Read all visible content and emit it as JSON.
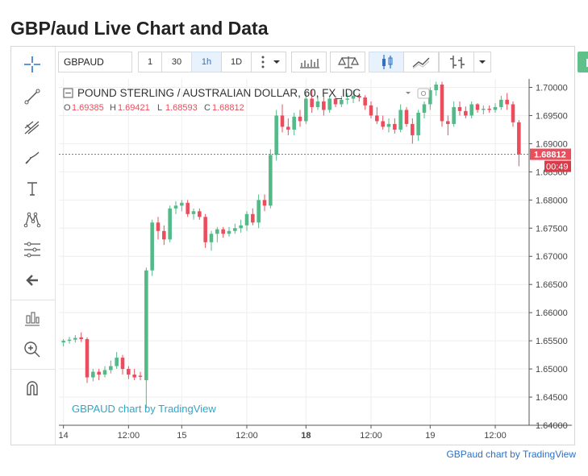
{
  "page": {
    "title": "GBP/aud Live Chart and Data"
  },
  "toolbar": {
    "symbol": "GBPAUD",
    "intervals": [
      "1",
      "30",
      "1h",
      "1D"
    ],
    "active_interval": "1h",
    "icons": [
      "more-dots-icon",
      "chevron-down-icon",
      "bar-style-icon",
      "compare-icon",
      "candles-icon",
      "line-style-icon",
      "indicators-icon",
      "chevron-down-icon",
      "camera-icon"
    ]
  },
  "sidebar": {
    "tools": [
      "crosshair-icon",
      "trend-line-icon",
      "pitchfork-icon",
      "brush-icon",
      "text-icon",
      "pattern-icon",
      "fib-icon",
      "back-arrow-icon",
      "bars-icon",
      "zoom-in-icon",
      "magnet-icon"
    ]
  },
  "legend": {
    "title": "POUND STERLING / AUSTRALIAN DOLLAR, 60, FX_IDC",
    "o_label": "O",
    "o_value": "1.69385",
    "h_label": "H",
    "h_value": "1.69421",
    "l_label": "L",
    "l_value": "1.68593",
    "c_label": "C",
    "c_value": "1.68812"
  },
  "watermark": "GBPAUD chart by TradingView",
  "credit": "GBPaud chart by TradingView",
  "last_price": {
    "value": "1.68812",
    "countdown": "00:49"
  },
  "colors": {
    "up": "#53b987",
    "down": "#eb4d5c",
    "accent": "#2a72c8",
    "camera": "#60c08a"
  },
  "chart_data": {
    "type": "candlestick",
    "y_ticks": [
      "1.70000",
      "1.69500",
      "1.69000",
      "1.68500",
      "1.68000",
      "1.67500",
      "1.67000",
      "1.66500",
      "1.66000",
      "1.65500",
      "1.65000",
      "1.64500",
      "1.64000"
    ],
    "x_ticks": [
      "14",
      "12:00",
      "15",
      "12:00",
      "18",
      "12:00",
      "19",
      "12:00"
    ],
    "ylim": [
      1.64,
      1.7015
    ],
    "candles": [
      [
        1.6547,
        1.6553,
        1.654,
        1.655
      ],
      [
        1.655,
        1.6557,
        1.6545,
        1.6552
      ],
      [
        1.6552,
        1.656,
        1.6547,
        1.6555
      ],
      [
        1.6556,
        1.6565,
        1.6548,
        1.6553
      ],
      [
        1.6553,
        1.6556,
        1.6475,
        1.6485
      ],
      [
        1.6485,
        1.65,
        1.6478,
        1.6495
      ],
      [
        1.6495,
        1.65,
        1.648,
        1.649
      ],
      [
        1.649,
        1.6505,
        1.6485,
        1.6498
      ],
      [
        1.6498,
        1.6515,
        1.6492,
        1.6505
      ],
      [
        1.6505,
        1.653,
        1.65,
        1.652
      ],
      [
        1.652,
        1.6525,
        1.649,
        1.65
      ],
      [
        1.65,
        1.6505,
        1.6482,
        1.649
      ],
      [
        1.649,
        1.65,
        1.648,
        1.6485
      ],
      [
        1.6488,
        1.6495,
        1.648,
        1.6486
      ],
      [
        1.648,
        1.668,
        1.643,
        1.6675
      ],
      [
        1.6675,
        1.6765,
        1.6665,
        1.676
      ],
      [
        1.676,
        1.677,
        1.673,
        1.6745
      ],
      [
        1.6745,
        1.6755,
        1.672,
        1.673
      ],
      [
        1.673,
        1.679,
        1.6725,
        1.6785
      ],
      [
        1.6785,
        1.6798,
        1.6775,
        1.679
      ],
      [
        1.679,
        1.68,
        1.678,
        1.6795
      ],
      [
        1.6795,
        1.68,
        1.677,
        1.6775
      ],
      [
        1.6775,
        1.6785,
        1.6765,
        1.678
      ],
      [
        1.678,
        1.6785,
        1.6765,
        1.677
      ],
      [
        1.677,
        1.6775,
        1.6715,
        1.6725
      ],
      [
        1.6725,
        1.6745,
        1.671,
        1.674
      ],
      [
        1.674,
        1.6752,
        1.6725,
        1.6748
      ],
      [
        1.6748,
        1.6752,
        1.6733,
        1.674
      ],
      [
        1.674,
        1.6752,
        1.6735,
        1.6745
      ],
      [
        1.6745,
        1.6758,
        1.674,
        1.675
      ],
      [
        1.675,
        1.6765,
        1.6742,
        1.6755
      ],
      [
        1.6755,
        1.678,
        1.6745,
        1.6775
      ],
      [
        1.6775,
        1.6785,
        1.6755,
        1.676
      ],
      [
        1.676,
        1.681,
        1.675,
        1.68
      ],
      [
        1.68,
        1.681,
        1.678,
        1.679
      ],
      [
        1.679,
        1.689,
        1.6785,
        1.688
      ],
      [
        1.688,
        1.696,
        1.687,
        1.695
      ],
      [
        1.695,
        1.697,
        1.692,
        1.693
      ],
      [
        1.693,
        1.6945,
        1.6915,
        1.6925
      ],
      [
        1.6925,
        1.6955,
        1.6915,
        1.6948
      ],
      [
        1.6948,
        1.696,
        1.693,
        1.694
      ],
      [
        1.694,
        1.699,
        1.6935,
        1.698
      ],
      [
        1.698,
        1.6995,
        1.6955,
        1.6965
      ],
      [
        1.6965,
        1.6985,
        1.696,
        1.6975
      ],
      [
        1.6975,
        1.6985,
        1.695,
        1.696
      ],
      [
        1.696,
        1.6985,
        1.6955,
        1.698
      ],
      [
        1.698,
        1.6985,
        1.6965,
        1.697
      ],
      [
        1.697,
        1.6985,
        1.6965,
        1.6978
      ],
      [
        1.6978,
        1.699,
        1.697,
        1.698
      ],
      [
        1.698,
        1.6995,
        1.6972,
        1.6985
      ],
      [
        1.6985,
        1.699,
        1.6975,
        1.6982
      ],
      [
        1.6982,
        1.6986,
        1.696,
        1.6968
      ],
      [
        1.6968,
        1.6975,
        1.6945,
        1.695
      ],
      [
        1.695,
        1.6965,
        1.6935,
        1.694
      ],
      [
        1.694,
        1.695,
        1.6925,
        1.693
      ],
      [
        1.693,
        1.6945,
        1.692,
        1.6935
      ],
      [
        1.6935,
        1.6945,
        1.6918,
        1.6925
      ],
      [
        1.6925,
        1.697,
        1.692,
        1.696
      ],
      [
        1.696,
        1.6965,
        1.693,
        1.6935
      ],
      [
        1.6935,
        1.6945,
        1.69,
        1.6915
      ],
      [
        1.6915,
        1.696,
        1.6905,
        1.6955
      ],
      [
        1.6955,
        1.6975,
        1.6945,
        1.697
      ],
      [
        1.697,
        1.7,
        1.696,
        1.6995
      ],
      [
        1.6995,
        1.701,
        1.6985,
        1.7005
      ],
      [
        1.7005,
        1.701,
        1.693,
        1.694
      ],
      [
        1.694,
        1.695,
        1.6915,
        1.6935
      ],
      [
        1.6935,
        1.6975,
        1.693,
        1.6965
      ],
      [
        1.6965,
        1.6975,
        1.695,
        1.6958
      ],
      [
        1.6958,
        1.6966,
        1.6945,
        1.695
      ],
      [
        1.695,
        1.6975,
        1.6945,
        1.697
      ],
      [
        1.697,
        1.6972,
        1.6955,
        1.696
      ],
      [
        1.696,
        1.6968,
        1.6952,
        1.6962
      ],
      [
        1.6962,
        1.6968,
        1.6955,
        1.696
      ],
      [
        1.696,
        1.6972,
        1.6955,
        1.6965
      ],
      [
        1.6965,
        1.6985,
        1.696,
        1.6978
      ],
      [
        1.6978,
        1.699,
        1.696,
        1.697
      ],
      [
        1.697,
        1.6975,
        1.693,
        1.6938
      ],
      [
        1.6938,
        1.6942,
        1.686,
        1.6881
      ]
    ]
  }
}
